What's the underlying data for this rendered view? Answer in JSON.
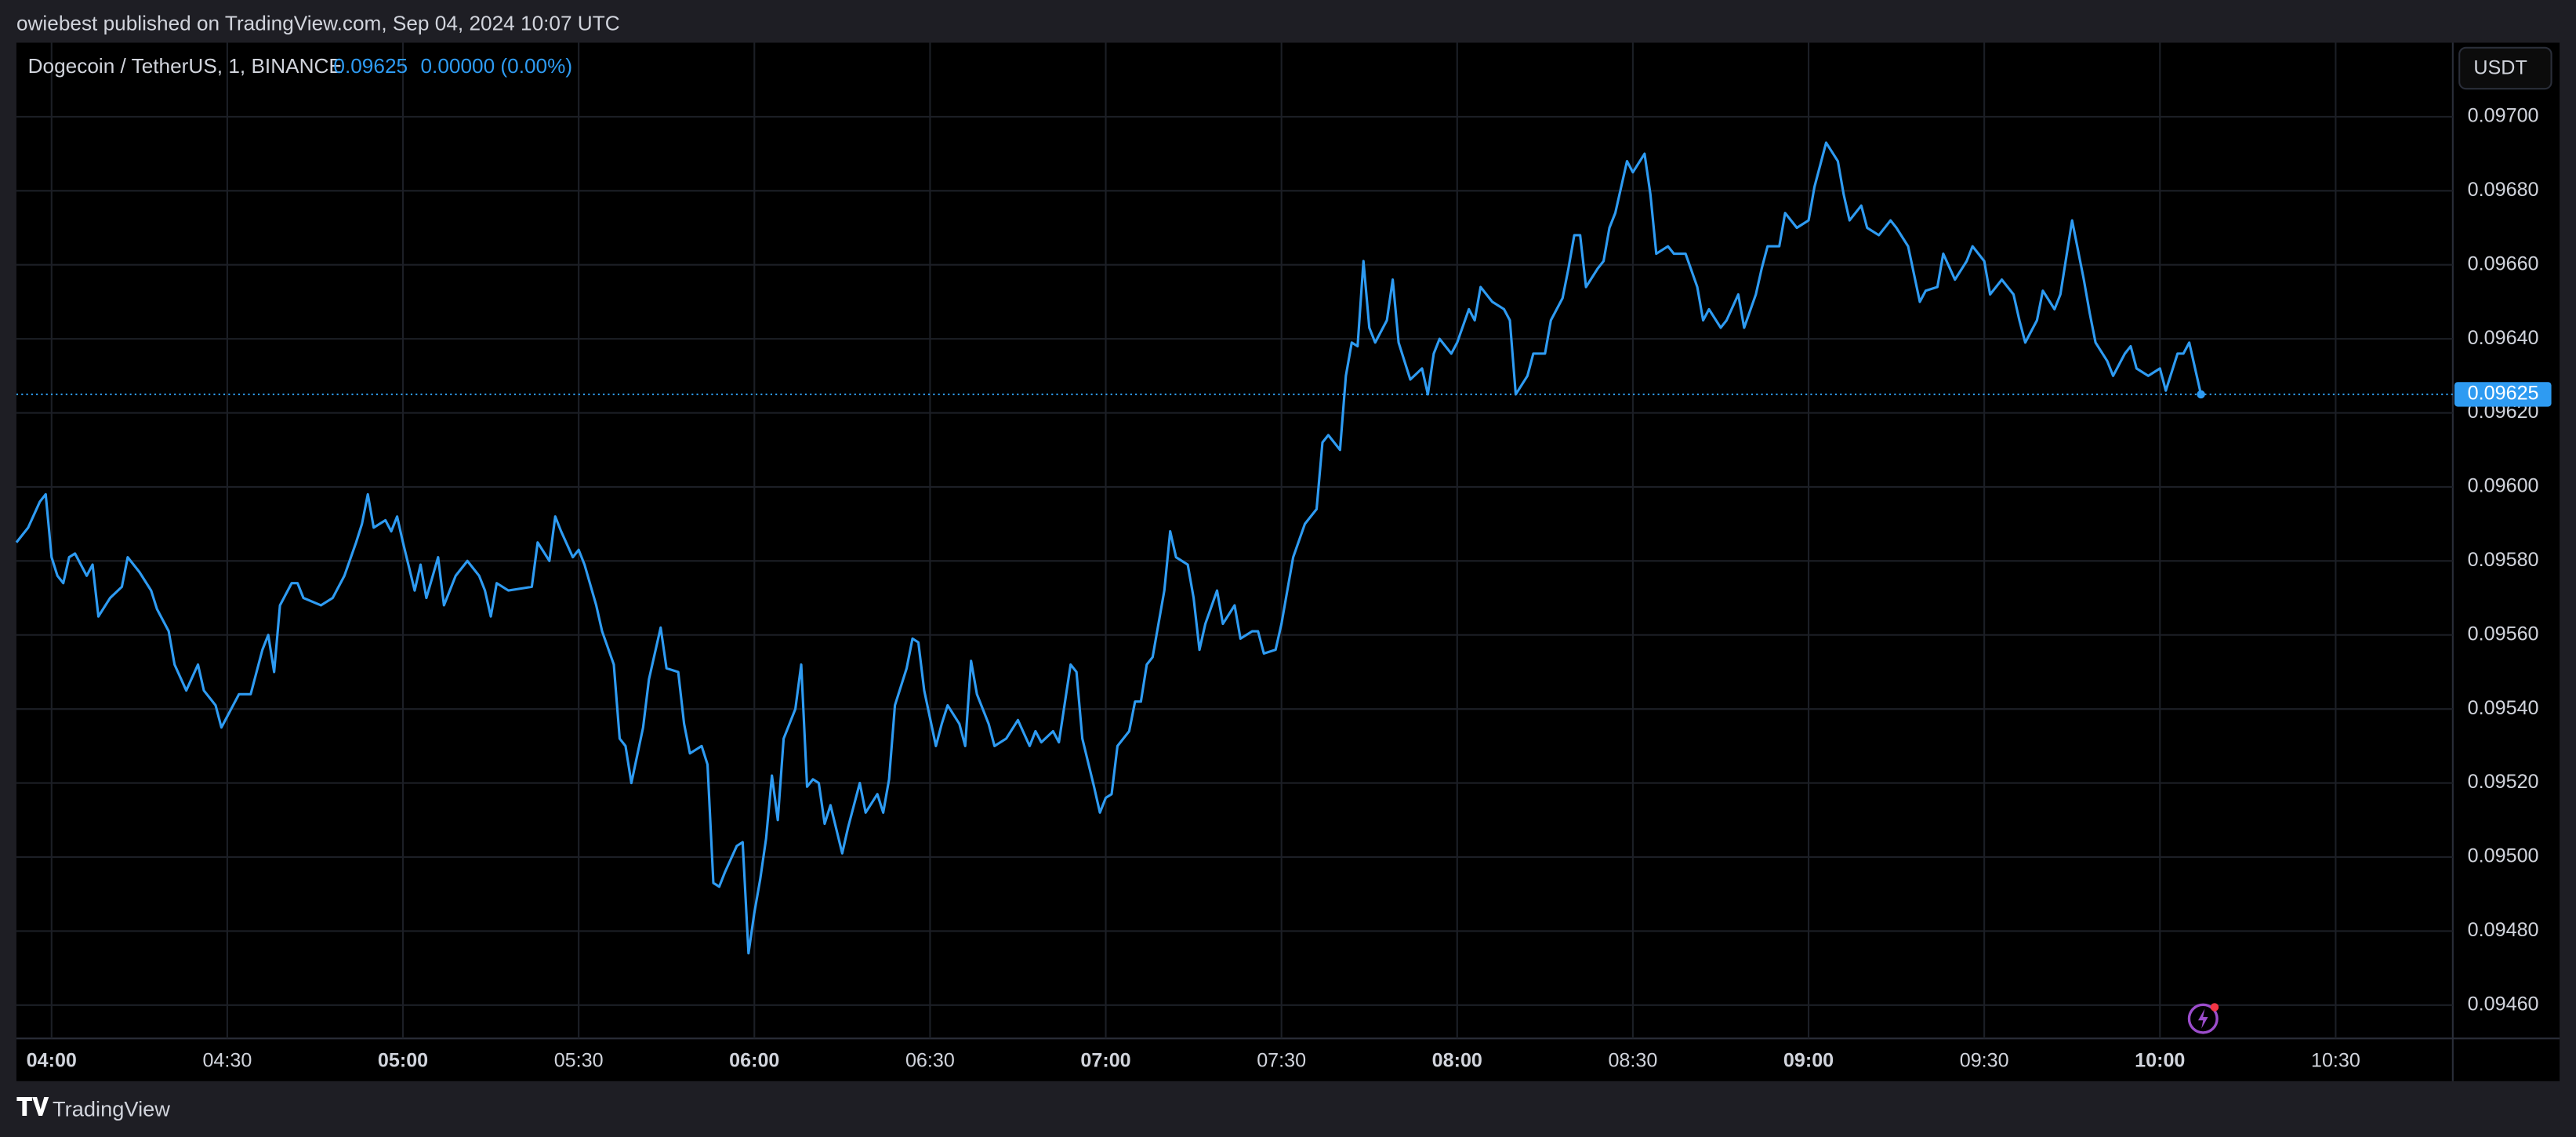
{
  "header": {
    "text": "owiebest published on TradingView.com, Sep 04, 2024 10:07 UTC"
  },
  "footer": {
    "brand": "TradingView"
  },
  "chart_data": {
    "type": "line",
    "title": "Dogecoin / TetherUS, 1, BINANCE",
    "last_price": 0.09625,
    "change": "0.00000 (0.00%)",
    "currency": "USDT",
    "color": "#2e9bf2",
    "x": [
      "03:54",
      "03:56",
      "03:58",
      "03:59",
      "04:00",
      "04:01",
      "04:02",
      "04:03",
      "04:04",
      "04:06",
      "04:07",
      "04:08",
      "04:10",
      "04:12",
      "04:13",
      "04:15",
      "04:17",
      "04:18",
      "04:20",
      "04:21",
      "04:23",
      "04:25",
      "04:26",
      "04:28",
      "04:29",
      "04:31",
      "04:32",
      "04:34",
      "04:36",
      "04:37",
      "04:38",
      "04:39",
      "04:41",
      "04:42",
      "04:43",
      "04:46",
      "04:48",
      "04:50",
      "04:52",
      "04:53",
      "04:54",
      "04:55",
      "04:57",
      "04:58",
      "04:59",
      "05:00",
      "05:02",
      "05:03",
      "05:04",
      "05:06",
      "05:07",
      "05:09",
      "05:11",
      "05:13",
      "05:14",
      "05:15",
      "05:16",
      "05:18",
      "05:22",
      "05:23",
      "05:25",
      "05:26",
      "05:27",
      "05:29",
      "05:30",
      "05:31",
      "05:33",
      "05:34",
      "05:36",
      "05:37",
      "05:38",
      "05:39",
      "05:41",
      "05:42",
      "05:44",
      "05:45",
      "05:47",
      "05:48",
      "05:49",
      "05:51",
      "05:52",
      "05:53",
      "05:54",
      "05:55",
      "05:57",
      "05:58",
      "05:59",
      "06:00",
      "06:01",
      "06:02",
      "06:03",
      "06:04",
      "06:05",
      "06:07",
      "06:08",
      "06:09",
      "06:10",
      "06:11",
      "06:12",
      "06:13",
      "06:15",
      "06:16",
      "06:17",
      "06:18",
      "06:19",
      "06:21",
      "06:22",
      "06:23",
      "06:24",
      "06:26",
      "06:27",
      "06:28",
      "06:29",
      "06:31",
      "06:32",
      "06:33",
      "06:35",
      "06:36",
      "06:37",
      "06:38",
      "06:40",
      "06:41",
      "06:43",
      "06:45",
      "06:47",
      "06:48",
      "06:49",
      "06:51",
      "06:52",
      "06:54",
      "06:55",
      "06:56",
      "06:58",
      "06:59",
      "07:00",
      "07:01",
      "07:02",
      "07:04",
      "07:05",
      "07:06",
      "07:07",
      "07:08",
      "07:10",
      "07:11",
      "07:12",
      "07:14",
      "07:15",
      "07:16",
      "07:17",
      "07:19",
      "07:20",
      "07:22",
      "07:23",
      "07:25",
      "07:26",
      "07:27",
      "07:29",
      "07:30",
      "07:31",
      "07:32",
      "07:34",
      "07:36",
      "07:37",
      "07:38",
      "07:40",
      "07:41",
      "07:42",
      "07:43",
      "07:44",
      "07:45",
      "07:46",
      "07:48",
      "07:49",
      "07:50",
      "07:52",
      "07:54",
      "07:55",
      "07:56",
      "07:57",
      "07:59",
      "08:00",
      "08:02",
      "08:03",
      "08:04",
      "08:06",
      "08:08",
      "08:09",
      "08:10",
      "08:12",
      "08:13",
      "08:15",
      "08:16",
      "08:18",
      "08:19",
      "08:20",
      "08:21",
      "08:22",
      "08:24",
      "08:25",
      "08:26",
      "08:27",
      "08:29",
      "08:30",
      "08:32",
      "08:33",
      "08:34",
      "08:36",
      "08:37",
      "08:39",
      "08:41",
      "08:42",
      "08:43",
      "08:45",
      "08:46",
      "08:48",
      "08:49",
      "08:51",
      "08:52",
      "08:53",
      "08:55",
      "08:56",
      "08:58",
      "09:00",
      "09:01",
      "09:03",
      "09:05",
      "09:06",
      "09:07",
      "09:09",
      "09:10",
      "09:12",
      "09:14",
      "09:15",
      "09:17",
      "09:19",
      "09:20",
      "09:22",
      "09:23",
      "09:25",
      "09:27",
      "09:28",
      "09:30",
      "09:31",
      "09:33",
      "09:35",
      "09:36",
      "09:37",
      "09:39",
      "09:40",
      "09:42",
      "09:43",
      "09:45",
      "09:47",
      "09:48",
      "09:49",
      "09:51",
      "09:52",
      "09:54",
      "09:55",
      "09:56",
      "09:58",
      "10:00",
      "10:01",
      "10:03",
      "10:04",
      "10:05",
      "10:06",
      "10:07"
    ],
    "values": [
      0.09585,
      0.09589,
      0.09596,
      0.09598,
      0.09581,
      0.09576,
      0.09574,
      0.09581,
      0.09582,
      0.09576,
      0.09579,
      0.09565,
      0.0957,
      0.09573,
      0.09581,
      0.09577,
      0.09572,
      0.09567,
      0.09561,
      0.09552,
      0.09545,
      0.09552,
      0.09545,
      0.09541,
      0.09535,
      0.09541,
      0.09544,
      0.09544,
      0.09556,
      0.0956,
      0.0955,
      0.09568,
      0.09574,
      0.09574,
      0.0957,
      0.09568,
      0.0957,
      0.09576,
      0.09585,
      0.0959,
      0.09598,
      0.09589,
      0.09591,
      0.09588,
      0.09592,
      0.09585,
      0.09572,
      0.09579,
      0.0957,
      0.09581,
      0.09568,
      0.09576,
      0.0958,
      0.09576,
      0.09572,
      0.09565,
      0.09574,
      0.09572,
      0.09573,
      0.09585,
      0.0958,
      0.09592,
      0.09588,
      0.09581,
      0.09583,
      0.09579,
      0.09568,
      0.09561,
      0.09552,
      0.09532,
      0.0953,
      0.0952,
      0.09535,
      0.09548,
      0.09562,
      0.09551,
      0.0955,
      0.09536,
      0.09528,
      0.0953,
      0.09525,
      0.09493,
      0.09492,
      0.09496,
      0.09503,
      0.09504,
      0.09474,
      0.09485,
      0.09494,
      0.09505,
      0.09522,
      0.0951,
      0.09532,
      0.0954,
      0.09552,
      0.09519,
      0.09521,
      0.0952,
      0.09509,
      0.09514,
      0.09501,
      0.09508,
      0.09514,
      0.0952,
      0.09512,
      0.09517,
      0.09512,
      0.09521,
      0.09541,
      0.09551,
      0.09559,
      0.09558,
      0.09545,
      0.0953,
      0.09536,
      0.09541,
      0.09536,
      0.0953,
      0.09553,
      0.09544,
      0.09536,
      0.0953,
      0.09532,
      0.09537,
      0.0953,
      0.09534,
      0.09531,
      0.09534,
      0.09531,
      0.09552,
      0.0955,
      0.09532,
      0.09519,
      0.09512,
      0.09516,
      0.09517,
      0.0953,
      0.09534,
      0.09542,
      0.09542,
      0.09552,
      0.09554,
      0.09572,
      0.09588,
      0.09581,
      0.09579,
      0.0957,
      0.09556,
      0.09563,
      0.09572,
      0.09563,
      0.09568,
      0.09559,
      0.09561,
      0.09561,
      0.09555,
      0.09556,
      0.09563,
      0.09572,
      0.09581,
      0.0959,
      0.09594,
      0.09612,
      0.09614,
      0.0961,
      0.0963,
      0.09639,
      0.09638,
      0.09661,
      0.09643,
      0.09639,
      0.09645,
      0.09656,
      0.09639,
      0.09629,
      0.09632,
      0.09625,
      0.09636,
      0.0964,
      0.09636,
      0.09639,
      0.09648,
      0.09645,
      0.09654,
      0.0965,
      0.09648,
      0.09645,
      0.09625,
      0.0963,
      0.09636,
      0.09636,
      0.09645,
      0.09651,
      0.09659,
      0.09668,
      0.09668,
      0.09654,
      0.09659,
      0.09661,
      0.0967,
      0.09674,
      0.09688,
      0.09685,
      0.0969,
      0.09679,
      0.09663,
      0.09665,
      0.09663,
      0.09663,
      0.09654,
      0.09645,
      0.09648,
      0.09643,
      0.09645,
      0.09652,
      0.09643,
      0.09652,
      0.09659,
      0.09665,
      0.09665,
      0.09674,
      0.0967,
      0.09672,
      0.09681,
      0.09693,
      0.09688,
      0.09679,
      0.09672,
      0.09676,
      0.0967,
      0.09668,
      0.09672,
      0.0967,
      0.09665,
      0.0965,
      0.09653,
      0.09654,
      0.09663,
      0.09656,
      0.09661,
      0.09665,
      0.09661,
      0.09652,
      0.09656,
      0.09652,
      0.09645,
      0.09639,
      0.09645,
      0.09653,
      0.09648,
      0.09652,
      0.09672,
      0.09656,
      0.09647,
      0.09639,
      0.09634,
      0.0963,
      0.09636,
      0.09638,
      0.09632,
      0.0963,
      0.09632,
      0.09626,
      0.09636,
      0.09636,
      0.09639,
      0.09632,
      0.09625
    ],
    "xlim": [
      "03:54",
      "10:50"
    ],
    "xticks": [
      "04:00",
      "04:30",
      "05:00",
      "05:30",
      "06:00",
      "06:30",
      "07:00",
      "07:30",
      "08:00",
      "08:30",
      "09:00",
      "09:30",
      "10:00",
      "10:30"
    ],
    "ylim": [
      0.09451,
      0.0972
    ],
    "yticks": [
      {
        "value": 0.0946,
        "label": "0.09460"
      },
      {
        "value": 0.0948,
        "label": "0.09480"
      },
      {
        "value": 0.095,
        "label": "0.09500"
      },
      {
        "value": 0.0952,
        "label": "0.09520"
      },
      {
        "value": 0.0954,
        "label": "0.09540"
      },
      {
        "value": 0.0956,
        "label": "0.09560"
      },
      {
        "value": 0.0958,
        "label": "0.09580"
      },
      {
        "value": 0.096,
        "label": "0.09600"
      },
      {
        "value": 0.0962,
        "label": "0.09620"
      },
      {
        "value": 0.0964,
        "label": "0.09640"
      },
      {
        "value": 0.0966,
        "label": "0.09660"
      },
      {
        "value": 0.0968,
        "label": "0.09680"
      },
      {
        "value": 0.097,
        "label": "0.09700"
      }
    ],
    "grid": true
  }
}
